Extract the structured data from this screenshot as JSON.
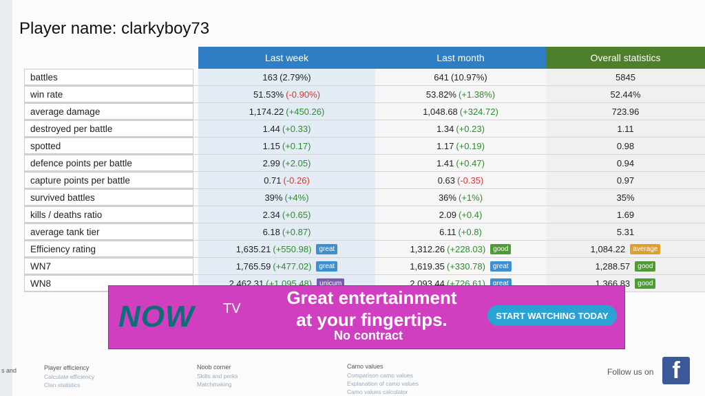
{
  "header": {
    "title": "Player name: clarkyboy73"
  },
  "table": {
    "columns": [
      {
        "name": "Last week",
        "color": "#2f7ec4"
      },
      {
        "name": "Last month",
        "color": "#2f7ec4"
      },
      {
        "name": "Overall statistics",
        "color": "#4e7f2a"
      }
    ],
    "rows": [
      {
        "label": "battles",
        "cells": [
          {
            "main": "163",
            "change": "(2.79%)"
          },
          {
            "main": "641",
            "change": "(10.97%)"
          },
          {
            "main": "5845"
          }
        ]
      },
      {
        "label": "win rate",
        "cells": [
          {
            "main": "51.53%",
            "change": "(-0.90%)"
          },
          {
            "main": "53.82%",
            "change": "(+1.38%)"
          },
          {
            "main": "52.44%"
          }
        ]
      },
      {
        "label": "average damage",
        "cells": [
          {
            "main": "1,174.22",
            "change": "(+450.26)"
          },
          {
            "main": "1,048.68",
            "change": "(+324.72)"
          },
          {
            "main": "723.96"
          }
        ]
      },
      {
        "label": "destroyed per battle",
        "cells": [
          {
            "main": "1.44",
            "change": "(+0.33)"
          },
          {
            "main": "1.34",
            "change": "(+0.23)"
          },
          {
            "main": "1.11"
          }
        ]
      },
      {
        "label": "spotted",
        "cells": [
          {
            "main": "1.15",
            "change": "(+0.17)"
          },
          {
            "main": "1.17",
            "change": "(+0.19)"
          },
          {
            "main": "0.98"
          }
        ]
      },
      {
        "label": "defence points per battle",
        "cells": [
          {
            "main": "2.99",
            "change": "(+2.05)"
          },
          {
            "main": "1.41",
            "change": "(+0.47)"
          },
          {
            "main": "0.94"
          }
        ]
      },
      {
        "label": "capture points per battle",
        "cells": [
          {
            "main": "0.71",
            "change": "(-0.26)"
          },
          {
            "main": "0.63",
            "change": "(-0.35)"
          },
          {
            "main": "0.97"
          }
        ]
      },
      {
        "label": "survived battles",
        "cells": [
          {
            "main": "39%",
            "change": "(+4%)"
          },
          {
            "main": "36%",
            "change": "(+1%)"
          },
          {
            "main": "35%"
          }
        ]
      },
      {
        "label": "kills / deaths ratio",
        "cells": [
          {
            "main": "2.34",
            "change": "(+0.65)"
          },
          {
            "main": "2.09",
            "change": "(+0.4)"
          },
          {
            "main": "1.69"
          }
        ]
      },
      {
        "label": "average tank tier",
        "cells": [
          {
            "main": "6.18",
            "change": "(+0.87)"
          },
          {
            "main": "6.11",
            "change": "(+0.8)"
          },
          {
            "main": "5.31"
          }
        ]
      },
      {
        "label": "Efficiency rating",
        "cells": [
          {
            "main": "1,635.21",
            "change": "(+550.98)",
            "badge": {
              "text": "great",
              "color": "#3d8fd0"
            }
          },
          {
            "main": "1,312.26",
            "change": "(+228.03)",
            "badge": {
              "text": "good",
              "color": "#4f9a36"
            }
          },
          {
            "main": "1,084.22",
            "badge": {
              "text": "average",
              "color": "#e0a030"
            }
          }
        ]
      },
      {
        "label": "WN7",
        "cells": [
          {
            "main": "1,765.59",
            "change": "(+477.02)",
            "badge": {
              "text": "great",
              "color": "#3d8fd0"
            }
          },
          {
            "main": "1,619.35",
            "change": "(+330.78)",
            "badge": {
              "text": "great",
              "color": "#3d8fd0"
            }
          },
          {
            "main": "1,288.57",
            "badge": {
              "text": "good",
              "color": "#4f9a36"
            }
          }
        ]
      },
      {
        "label": "WN8",
        "cells": [
          {
            "main": "2,462.31",
            "change": "(+1,095.48)",
            "badge": {
              "text": "unicum",
              "color": "#7b5bb0"
            }
          },
          {
            "main": "2,093.44",
            "change": "(+726.61)",
            "badge": {
              "text": "great",
              "color": "#3d8fd0"
            }
          },
          {
            "main": "1,366.83",
            "badge": {
              "text": "good",
              "color": "#4f9a36"
            }
          }
        ]
      }
    ]
  },
  "ad": {
    "logo": "NOW",
    "logo_suffix": "TV",
    "headline_1": "Great entertainment",
    "headline_2": "at your fingertips.",
    "subline": "No contract",
    "button": "START WATCHING TODAY"
  },
  "footer": {
    "cut_text": "s and",
    "groups": [
      {
        "title": "Player efficiency",
        "links": [
          "Calculate efficiency",
          "Clan statistics"
        ]
      },
      {
        "title": "Noob corner",
        "links": [
          "Skills and perks",
          "Matchmaking"
        ]
      },
      {
        "title": "Camo values",
        "links": [
          "Comparison camo values",
          "Explanation of camo values",
          "Camo values calculator"
        ]
      }
    ],
    "follow": "Follow us on",
    "facebook_icon": "f"
  }
}
